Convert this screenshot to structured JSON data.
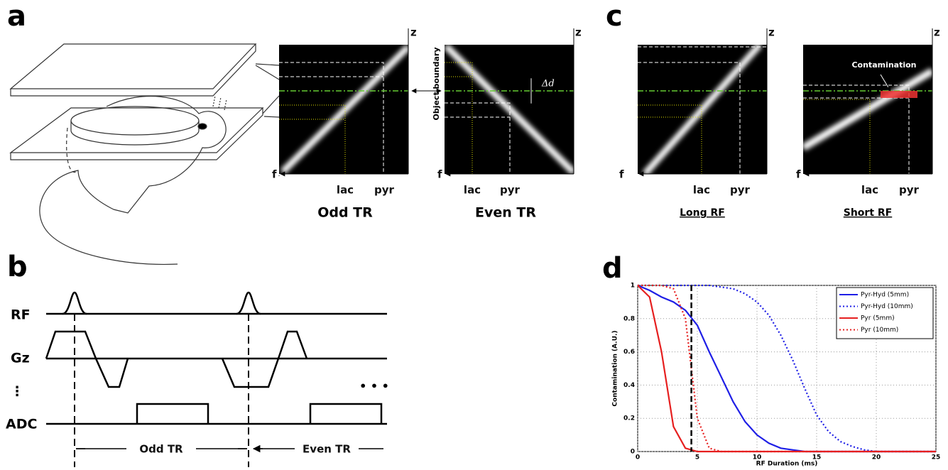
{
  "labels": {
    "a": "a",
    "b": "b",
    "c": "c",
    "d": "d"
  },
  "panel_a": {
    "boundary": "Object boundary",
    "odd": {
      "axis_z": "z",
      "axis_f": "f",
      "lac": "lac",
      "pyr": "pyr",
      "caption": "Odd TR"
    },
    "even": {
      "axis_z": "z",
      "axis_f": "f",
      "lac": "lac",
      "pyr": "pyr",
      "caption": "Even TR",
      "delta": "Δd"
    }
  },
  "panel_b": {
    "rows": [
      "RF",
      "Gz",
      "⋮",
      "ADC"
    ],
    "ellipsis": "• • •",
    "odd": "Odd TR",
    "even": "Even TR"
  },
  "panel_c": {
    "long": {
      "axis_z": "z",
      "axis_f": "f",
      "lac": "lac",
      "pyr": "pyr",
      "caption": "Long RF"
    },
    "short": {
      "axis_z": "z",
      "axis_f": "f",
      "lac": "lac",
      "pyr": "pyr",
      "caption": "Short RF",
      "annotation": "Contamination"
    }
  },
  "chart_data": {
    "type": "line",
    "xlabel": "RF Duration (ms)",
    "ylabel": "Contamination (A.U.)",
    "x": [
      0,
      1,
      2,
      3,
      4,
      5,
      6,
      7,
      8,
      9,
      10,
      11,
      12,
      13,
      14,
      15,
      16,
      17,
      18,
      19,
      20,
      21,
      22,
      23,
      24,
      25
    ],
    "series": [
      {
        "name": "Pyr-Hyd (5mm)",
        "color": "#1f1fe6",
        "style": "solid",
        "values": [
          1,
          0.97,
          0.93,
          0.9,
          0.85,
          0.76,
          0.6,
          0.45,
          0.3,
          0.18,
          0.1,
          0.05,
          0.02,
          0.01,
          0,
          0,
          0,
          0,
          0,
          0,
          0,
          0,
          0,
          0,
          0,
          0
        ]
      },
      {
        "name": "Pyr-Hyd (10mm)",
        "color": "#1f1fe6",
        "style": "dotted",
        "values": [
          1,
          1,
          1,
          1,
          1,
          1,
          1,
          0.99,
          0.98,
          0.95,
          0.9,
          0.82,
          0.7,
          0.55,
          0.38,
          0.22,
          0.12,
          0.06,
          0.03,
          0.01,
          0,
          0,
          0,
          0,
          0,
          0
        ]
      },
      {
        "name": "Pyr (5mm)",
        "color": "#e61f1f",
        "style": "solid",
        "values": [
          1,
          0.93,
          0.6,
          0.15,
          0.02,
          0,
          0,
          0,
          0,
          0,
          0,
          0,
          0,
          0,
          0,
          0,
          0,
          0,
          0,
          0,
          0,
          0,
          0,
          0,
          0,
          0
        ]
      },
      {
        "name": "Pyr (10mm)",
        "color": "#e61f1f",
        "style": "dotted",
        "values": [
          1,
          1,
          1,
          0.98,
          0.8,
          0.2,
          0.02,
          0,
          0,
          0,
          0,
          0,
          0,
          0,
          0,
          0,
          0,
          0,
          0,
          0,
          0,
          0,
          0,
          0,
          0,
          0
        ]
      }
    ],
    "marker_x": 4.5,
    "xlim": [
      0,
      25
    ],
    "ylim": [
      0,
      1
    ],
    "xticks": [
      0,
      5,
      10,
      15,
      20,
      25
    ],
    "yticks": [
      0,
      0.2,
      0.4,
      0.6,
      0.8,
      1
    ],
    "grid": true,
    "legend": "top-right"
  }
}
